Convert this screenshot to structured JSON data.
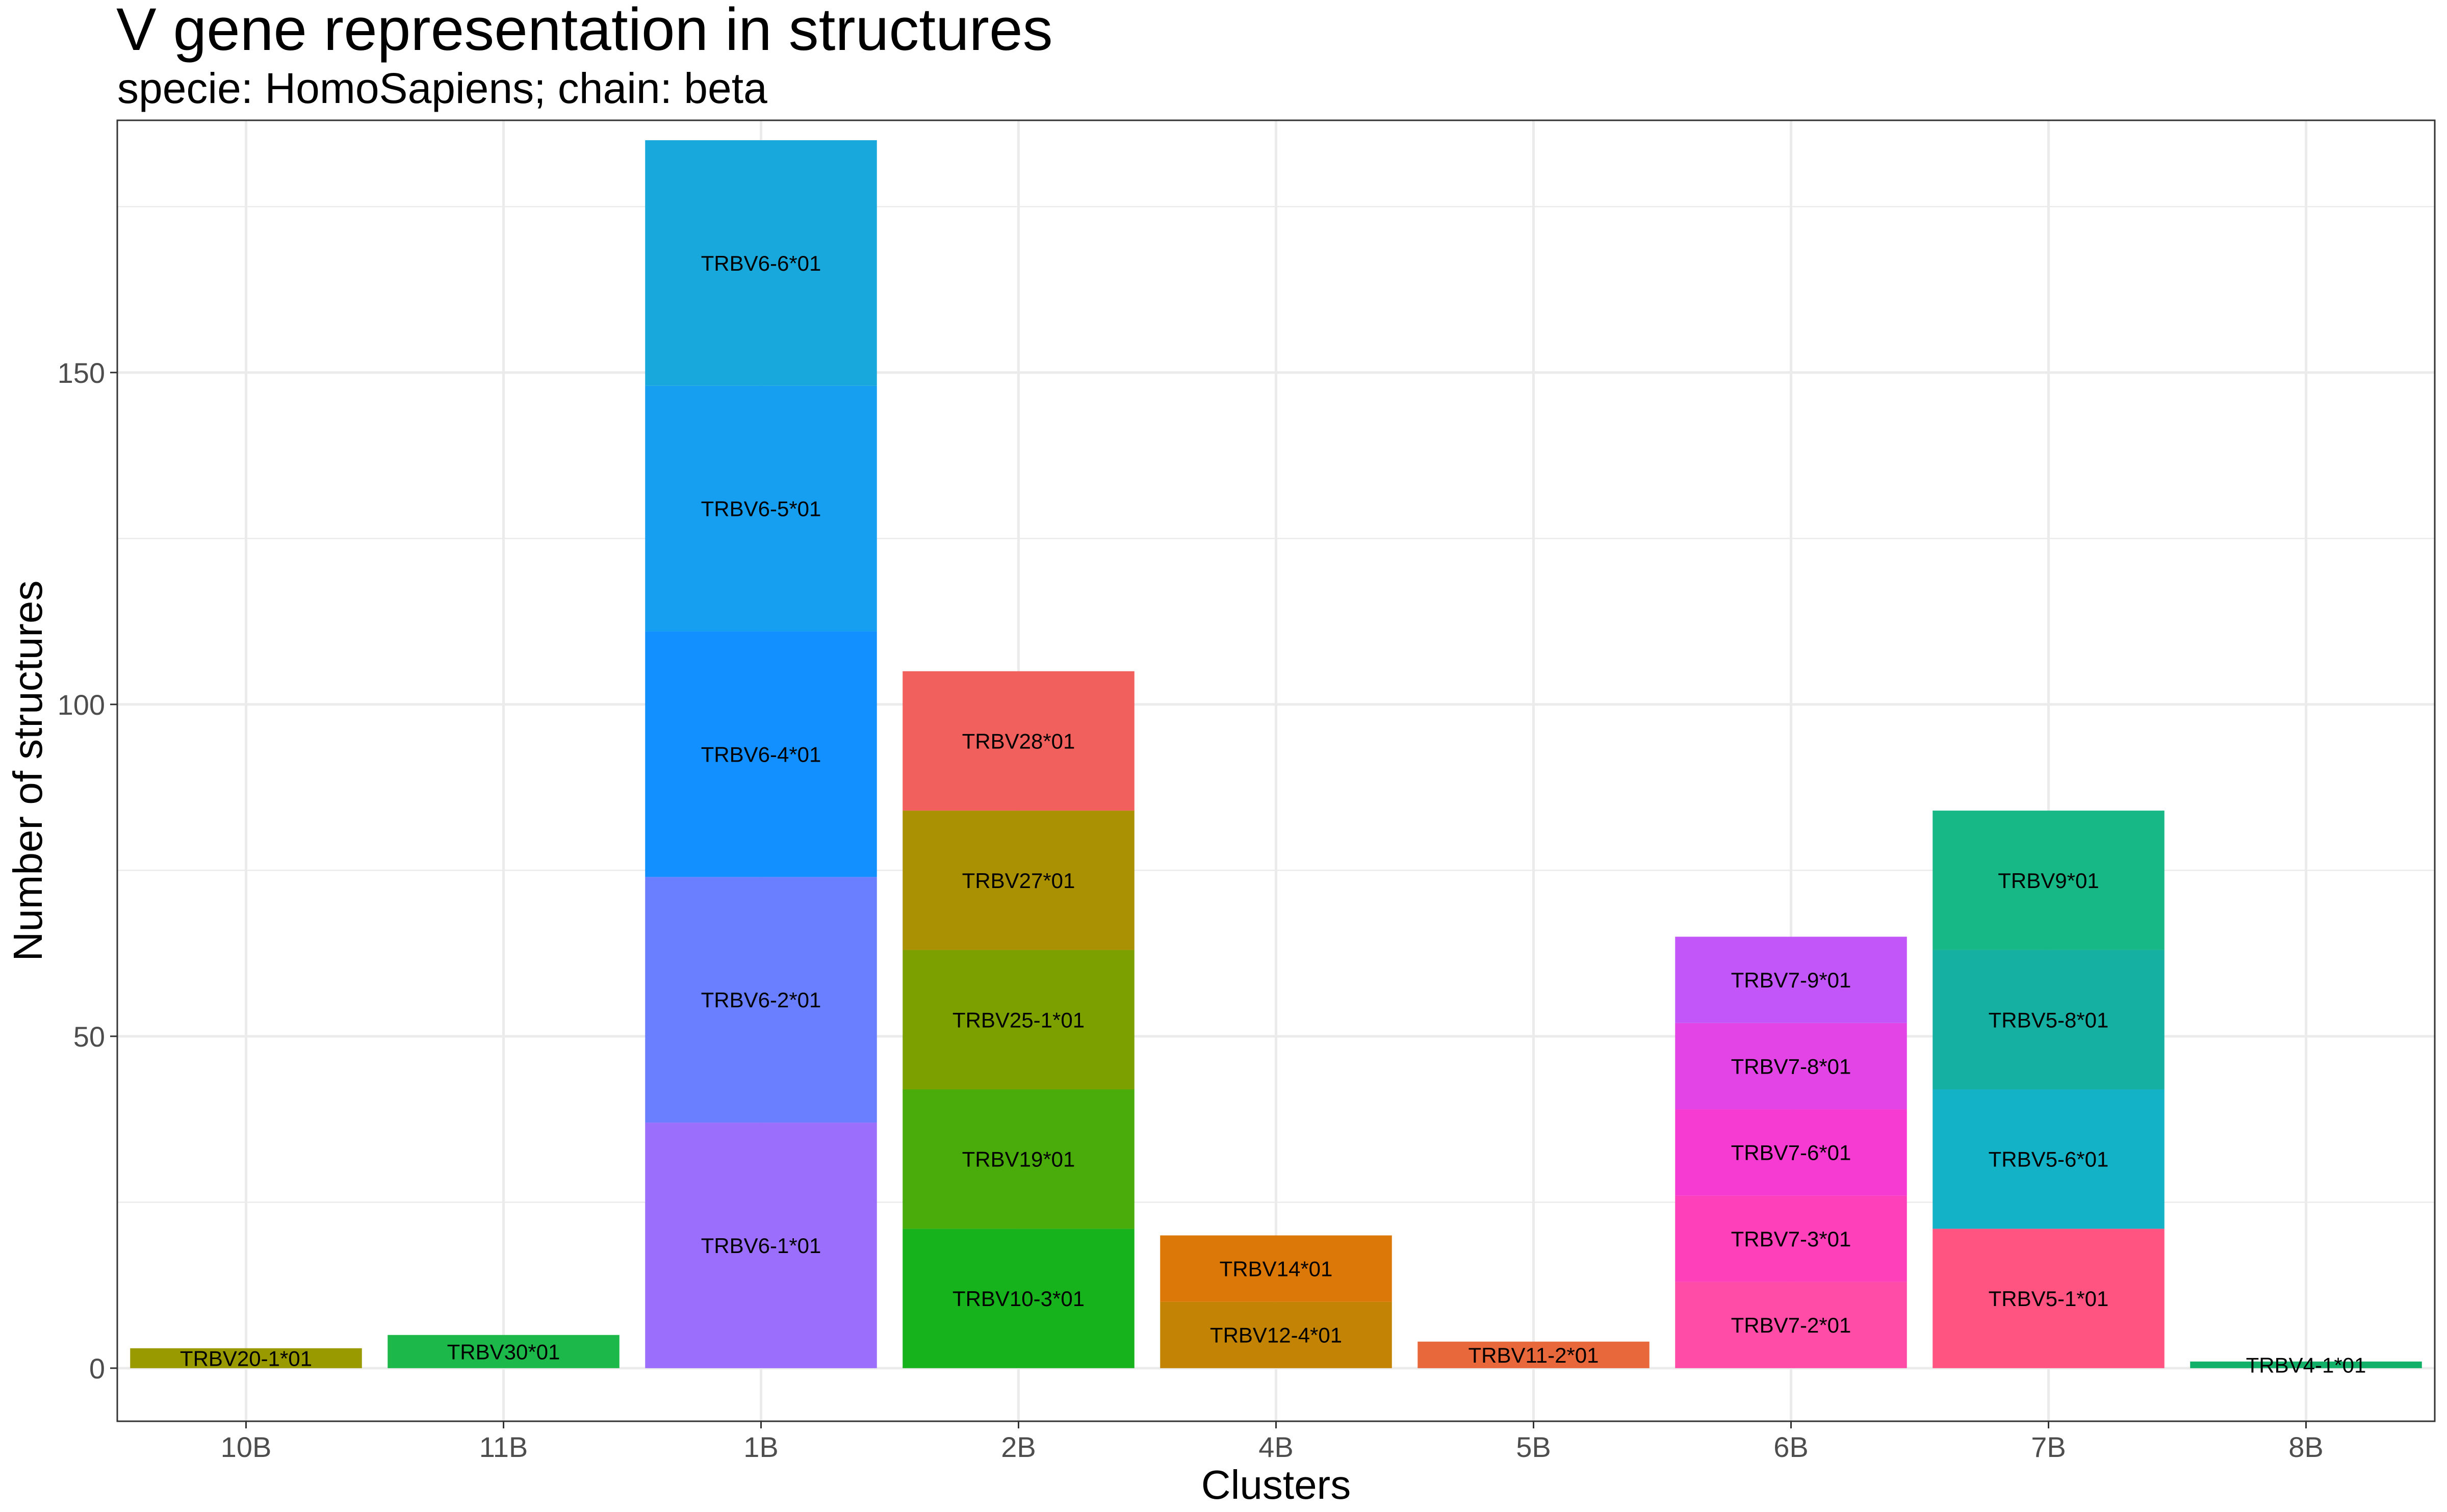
{
  "chart_data": {
    "type": "bar",
    "stacked": true,
    "title": "V gene representation in structures",
    "subtitle": "specie: HomoSapiens; chain: beta",
    "xlabel": "Clusters",
    "ylabel": "Number of structures",
    "ylim": [
      -8,
      188
    ],
    "yticks": [
      0,
      50,
      100,
      150
    ],
    "grid": true,
    "categories": [
      "10B",
      "11B",
      "1B",
      "2B",
      "4B",
      "5B",
      "6B",
      "7B",
      "8B"
    ],
    "stacks": [
      {
        "category": "10B",
        "segments": [
          {
            "label": "TRBV20-1*01",
            "value": 3,
            "color": "#999900"
          }
        ]
      },
      {
        "category": "11B",
        "segments": [
          {
            "label": "TRBV30*01",
            "value": 5,
            "color": "#1db84a"
          }
        ]
      },
      {
        "category": "1B",
        "segments": [
          {
            "label": "TRBV6-1*01",
            "value": 37,
            "color": "#9b6efc"
          },
          {
            "label": "TRBV6-2*01",
            "value": 37,
            "color": "#6a7fff"
          },
          {
            "label": "TRBV6-4*01",
            "value": 37,
            "color": "#1390ff"
          },
          {
            "label": "TRBV6-5*01",
            "value": 37,
            "color": "#169ef0"
          },
          {
            "label": "TRBV6-6*01",
            "value": 37,
            "color": "#19a8dc"
          }
        ]
      },
      {
        "category": "2B",
        "segments": [
          {
            "label": "TRBV10-3*01",
            "value": 21,
            "color": "#17b31c"
          },
          {
            "label": "TRBV19*01",
            "value": 21,
            "color": "#4aac0b"
          },
          {
            "label": "TRBV25-1*01",
            "value": 21,
            "color": "#7ba000"
          },
          {
            "label": "TRBV27*01",
            "value": 21,
            "color": "#aa9003"
          },
          {
            "label": "TRBV28*01",
            "value": 21,
            "color": "#f2605e"
          }
        ]
      },
      {
        "category": "4B",
        "segments": [
          {
            "label": "TRBV12-4*01",
            "value": 10,
            "color": "#c38304"
          },
          {
            "label": "TRBV14*01",
            "value": 10,
            "color": "#db7808"
          }
        ]
      },
      {
        "category": "5B",
        "segments": [
          {
            "label": "TRBV11-2*01",
            "value": 4,
            "color": "#e8673b"
          }
        ]
      },
      {
        "category": "6B",
        "segments": [
          {
            "label": "TRBV7-2*01",
            "value": 13,
            "color": "#ff4ca7"
          },
          {
            "label": "TRBV7-3*01",
            "value": 13,
            "color": "#ff40bb"
          },
          {
            "label": "TRBV7-6*01",
            "value": 13,
            "color": "#f63bd2"
          },
          {
            "label": "TRBV7-8*01",
            "value": 13,
            "color": "#e244e6"
          },
          {
            "label": "TRBV7-9*01",
            "value": 13,
            "color": "#c256f8"
          }
        ]
      },
      {
        "category": "7B",
        "segments": [
          {
            "label": "TRBV5-1*01",
            "value": 21,
            "color": "#ff5482"
          },
          {
            "label": "TRBV5-6*01",
            "value": 21,
            "color": "#14b2c6"
          },
          {
            "label": "TRBV5-8*01",
            "value": 21,
            "color": "#16b0a2"
          },
          {
            "label": "TRBV9*01",
            "value": 21,
            "color": "#18b886"
          }
        ]
      },
      {
        "category": "8B",
        "segments": [
          {
            "label": "TRBV4-1*01",
            "value": 1,
            "color": "#12b069"
          }
        ]
      }
    ]
  }
}
